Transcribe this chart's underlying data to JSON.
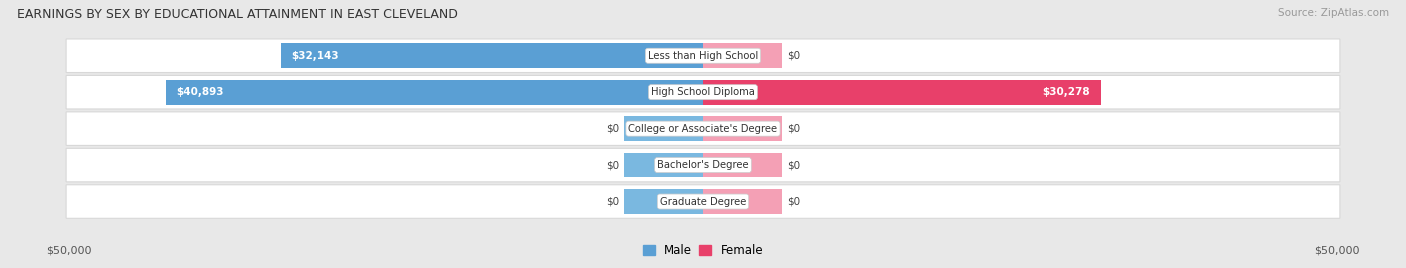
{
  "title": "EARNINGS BY SEX BY EDUCATIONAL ATTAINMENT IN EAST CLEVELAND",
  "source": "Source: ZipAtlas.com",
  "male_color": "#7ab8e0",
  "male_color_bright": "#5a9fd4",
  "female_color": "#f4a0b5",
  "female_color_bright": "#e8406a",
  "row_bg_color": "#ffffff",
  "row_border_color": "#d8d8d8",
  "fig_bg_color": "#e8e8e8",
  "max_value": 50000,
  "stub_value": 6000,
  "categories": [
    "Less than High School",
    "High School Diploma",
    "College or Associate's Degree",
    "Bachelor's Degree",
    "Graduate Degree"
  ],
  "male_values": [
    32143,
    40893,
    0,
    0,
    0
  ],
  "female_values": [
    0,
    30278,
    0,
    0,
    0
  ],
  "male_labels": [
    "$32,143",
    "$40,893",
    "$0",
    "$0",
    "$0"
  ],
  "female_labels": [
    "$0",
    "$30,278",
    "$0",
    "$0",
    "$0"
  ],
  "x_left_label": "$50,000",
  "x_right_label": "$50,000",
  "legend_male": "Male",
  "legend_female": "Female"
}
